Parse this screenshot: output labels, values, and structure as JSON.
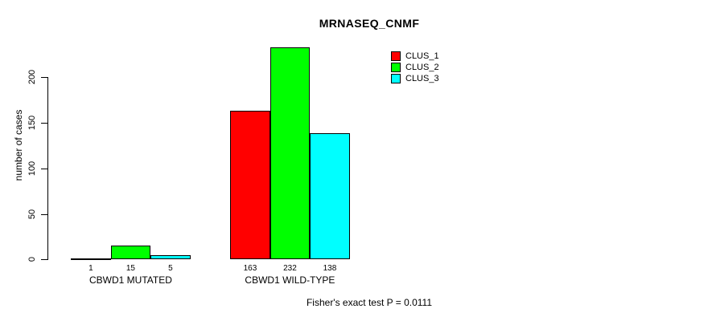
{
  "chart_data": {
    "type": "bar",
    "title": "MRNASEQ_CNMF",
    "ylabel": "number of cases",
    "xlabel": "",
    "categories": [
      "CBWD1 MUTATED",
      "CBWD1 WILD-TYPE"
    ],
    "series": [
      {
        "name": "CLUS_1",
        "color": "#ff0000",
        "values": [
          1,
          163
        ]
      },
      {
        "name": "CLUS_2",
        "color": "#00ff00",
        "values": [
          15,
          232
        ]
      },
      {
        "name": "CLUS_3",
        "color": "#00ffff",
        "values": [
          5,
          138
        ]
      }
    ],
    "y_ticks": [
      0,
      50,
      100,
      150,
      200
    ],
    "ylim": [
      0,
      232
    ],
    "bar_value_labels": true,
    "grid": false,
    "legend_position": "top-right",
    "legend_labels": [
      "CLUS_1",
      "CLUS_2",
      "CLUS_3"
    ],
    "annotation": "Fisher's exact test P = 0.0111",
    "colors": {
      "background": "#ffffff",
      "axis": "#000000",
      "text": "#000000",
      "clus_1": "#ff0000",
      "clus_2": "#00ff00",
      "clus_3": "#00ffff"
    }
  }
}
